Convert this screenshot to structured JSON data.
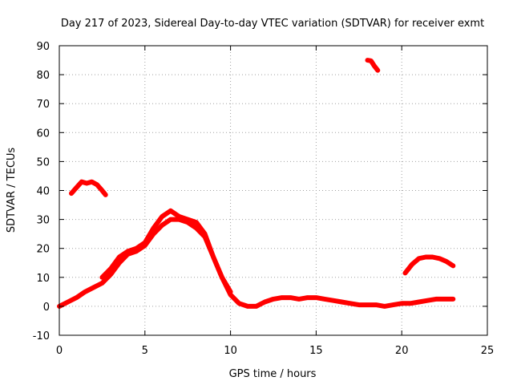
{
  "chart_data": {
    "type": "line",
    "title": "Day 217 of 2023, Sidereal Day-to-day VTEC variation (SDTVAR) for receiver exmt",
    "xlabel": "GPS time / hours",
    "ylabel": "SDTVAR / TECUs",
    "xlim": [
      0,
      25
    ],
    "ylim": [
      -10,
      90
    ],
    "x_ticks": [
      0,
      5,
      10,
      15,
      20,
      25
    ],
    "y_ticks": [
      -10,
      0,
      10,
      20,
      30,
      40,
      50,
      60,
      70,
      80,
      90
    ],
    "grid": true,
    "series_color": "#ff0000",
    "series": [
      {
        "name": "main-trace",
        "x": [
          0,
          0.5,
          1,
          1.5,
          2,
          2.5,
          3,
          3.5,
          4,
          4.5,
          5,
          5.5,
          6,
          6.5,
          7,
          7.5,
          8,
          8.5,
          9,
          9.5,
          10,
          10.5,
          11,
          11.5,
          12,
          12.5,
          13,
          13.5,
          14,
          14.5,
          15,
          15.5,
          16,
          16.5,
          17,
          17.5,
          18,
          18.5,
          19,
          19.5,
          20,
          20.5,
          21,
          21.5,
          22,
          22.5,
          23
        ],
        "y": [
          0,
          1.5,
          3,
          5,
          6.5,
          8,
          11,
          15,
          18,
          19,
          21,
          25,
          28,
          30,
          30,
          29,
          27,
          24,
          17,
          10,
          4,
          1,
          0,
          0,
          1.5,
          2.5,
          3,
          3,
          2.5,
          3,
          3,
          2.5,
          2,
          1.5,
          1,
          0.5,
          0.5,
          0.5,
          0,
          0.5,
          1,
          1,
          1.5,
          2,
          2.5,
          2.5,
          2.5
        ]
      },
      {
        "name": "upper-band",
        "x": [
          2.5,
          3,
          3.5,
          4,
          4.5,
          5,
          5.5,
          6,
          6.5,
          7,
          7.5,
          8,
          8.5,
          9,
          9.5,
          10
        ],
        "y": [
          10,
          13,
          17,
          19,
          20,
          22,
          27,
          31,
          33,
          31,
          30,
          29,
          25,
          17,
          10,
          5
        ]
      },
      {
        "name": "early-arc",
        "x": [
          0.7,
          1,
          1.3,
          1.6,
          1.9,
          2.2,
          2.5,
          2.7
        ],
        "y": [
          39,
          41,
          43,
          42.5,
          43,
          42,
          40,
          38.5
        ]
      },
      {
        "name": "late-arc",
        "x": [
          20.2,
          20.6,
          21,
          21.4,
          21.8,
          22.2,
          22.6,
          23
        ],
        "y": [
          11.5,
          14.5,
          16.5,
          17,
          17,
          16.5,
          15.5,
          14
        ]
      },
      {
        "name": "top-fragment",
        "x": [
          18,
          18.2,
          18.4,
          18.6
        ],
        "y": [
          85,
          84.8,
          83,
          81.5
        ]
      }
    ]
  }
}
